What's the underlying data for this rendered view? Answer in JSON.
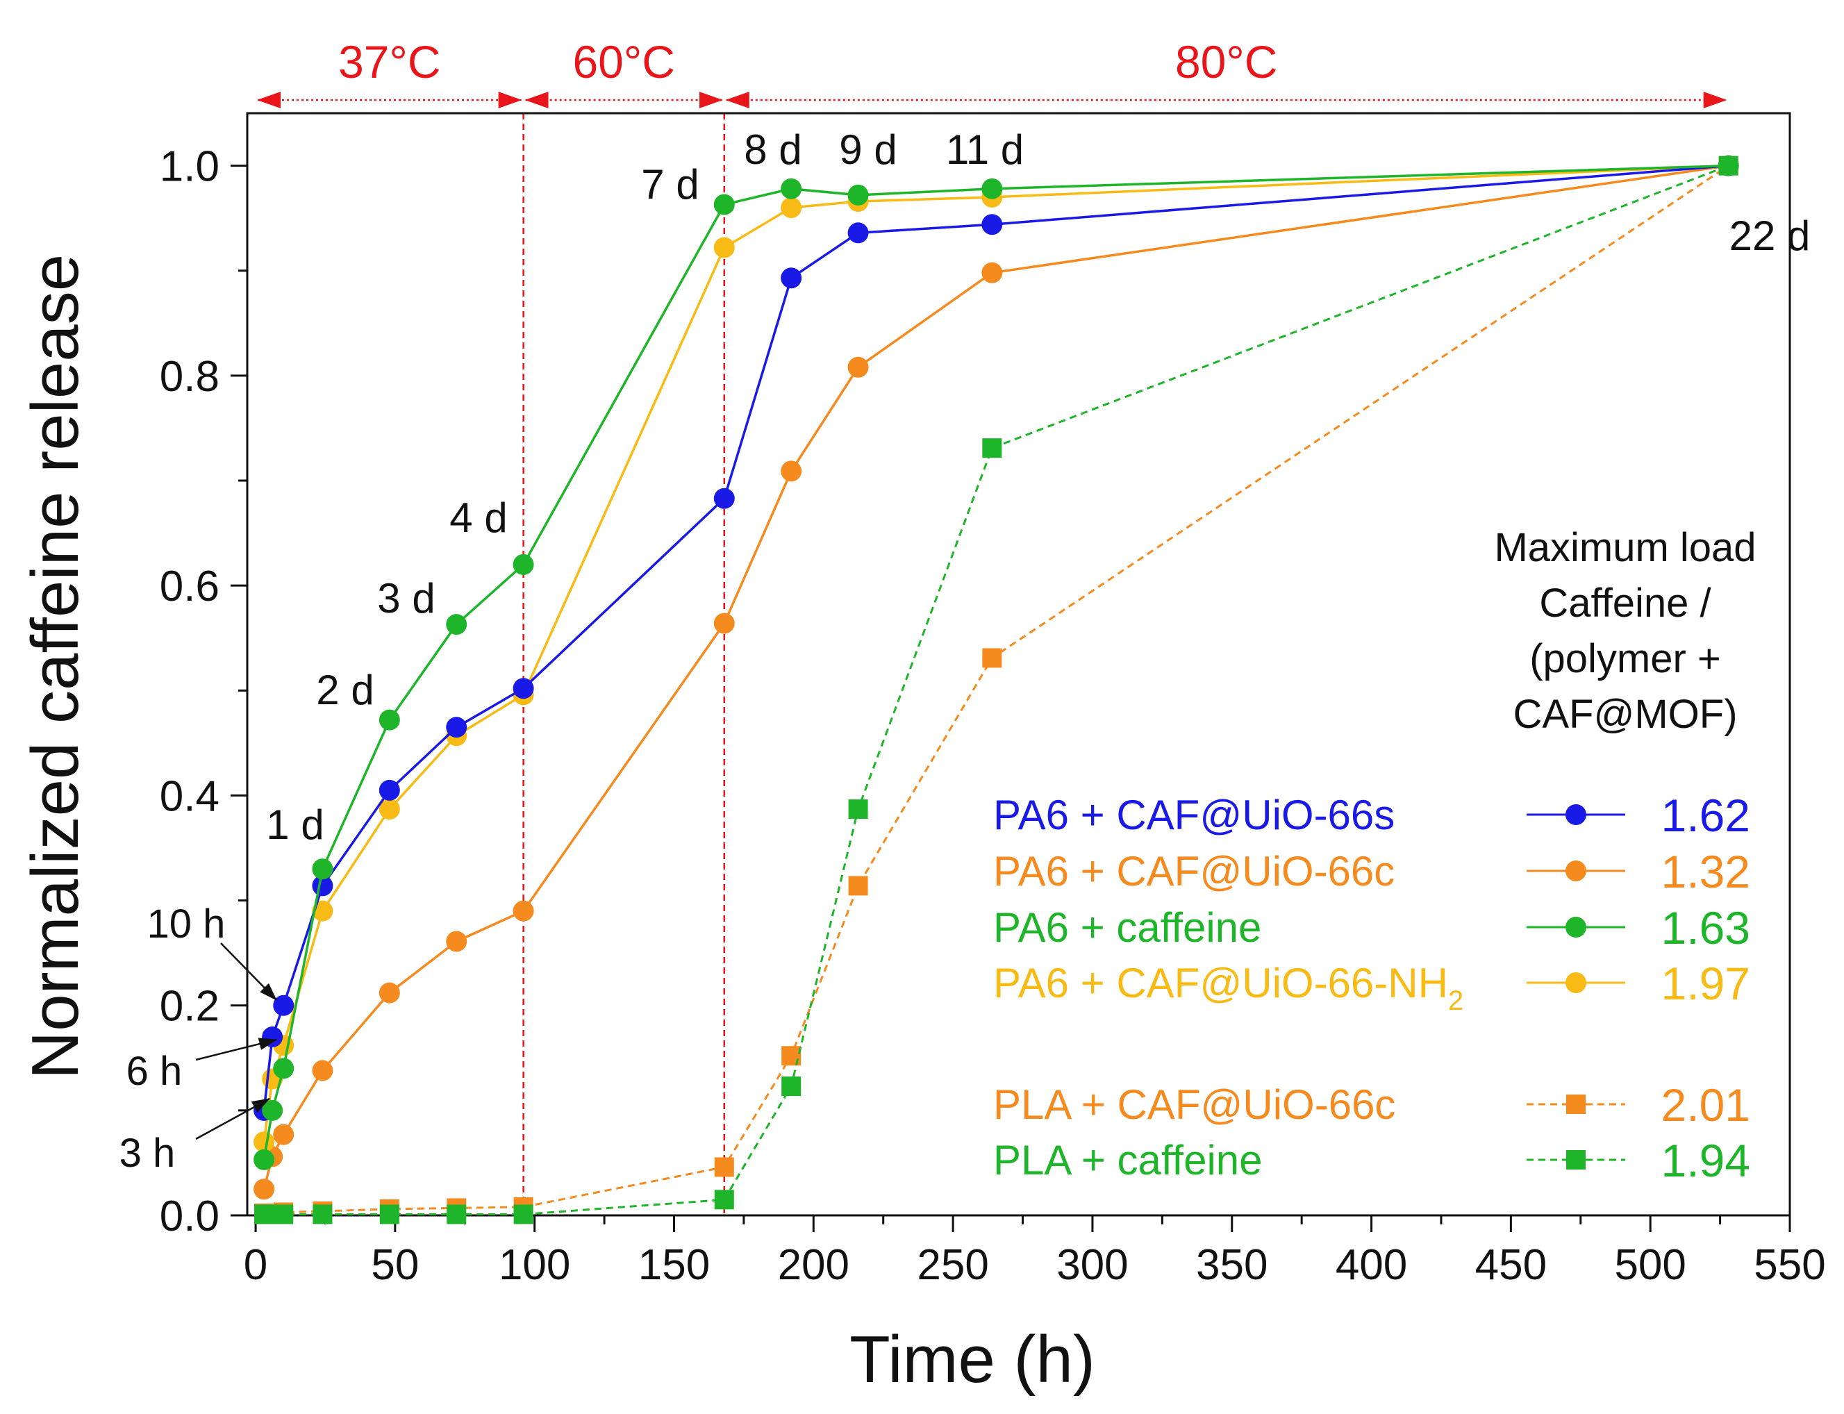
{
  "chart_data": {
    "type": "line",
    "title": "",
    "xlabel": "Time (h)",
    "ylabel": "Normalized caffeine release",
    "xlim": [
      -3,
      550
    ],
    "ylim": [
      0,
      1.05
    ],
    "xticks": [
      0,
      50,
      100,
      150,
      200,
      250,
      300,
      350,
      400,
      450,
      500,
      550
    ],
    "yticks": [
      0.0,
      0.2,
      0.4,
      0.6,
      0.8,
      1.0
    ],
    "ytick_labels": [
      "0.0",
      "0.2",
      "0.4",
      "0.6",
      "0.8",
      "1.0"
    ],
    "grid": false,
    "temperature_regions": [
      {
        "label": "37°C",
        "from": 0,
        "to": 96
      },
      {
        "label": "60°C",
        "from": 96,
        "to": 168
      },
      {
        "label": "80°C",
        "from": 168,
        "to": 528
      }
    ],
    "vlines": [
      96,
      168
    ],
    "time_annotations": [
      {
        "text": "1 d",
        "x": 24,
        "y": 0.33
      },
      {
        "text": "2 d",
        "x": 48,
        "y": 0.47
      },
      {
        "text": "3 d",
        "x": 72,
        "y": 0.56
      },
      {
        "text": "4 d",
        "x": 96,
        "y": 0.62
      },
      {
        "text": "7 d",
        "x": 168,
        "y": 0.96
      },
      {
        "text": "8 d",
        "x": 192,
        "y": 0.98
      },
      {
        "text": "9 d",
        "x": 216,
        "y": 0.98
      },
      {
        "text": "11 d",
        "x": 264,
        "y": 0.98
      },
      {
        "text": "22 d",
        "x": 528,
        "y": 0.93
      }
    ],
    "arrow_annotations": [
      {
        "text": "10 h",
        "x": 10,
        "y": 0.2
      },
      {
        "text": "6 h",
        "x": 6,
        "y": 0.17
      },
      {
        "text": "3 h",
        "x": 3,
        "y": 0.1
      }
    ],
    "legend_title": [
      "Maximum load",
      "Caffeine /",
      "(polymer +",
      "CAF@MOF)"
    ],
    "legend_position": "right",
    "series": [
      {
        "name": "PA6 + CAF@UiO-66s",
        "name_main": "PA6 + CAF@UiO-66s",
        "name_sub": "",
        "value": "1.62",
        "color": "#1a1ae6",
        "marker": "circle",
        "dashed": false,
        "x": [
          3,
          6,
          10,
          24,
          48,
          72,
          96,
          168,
          192,
          216,
          264,
          528
        ],
        "y": [
          0.1,
          0.17,
          0.2,
          0.314,
          0.405,
          0.465,
          0.502,
          0.683,
          0.893,
          0.936,
          0.944,
          1.0
        ]
      },
      {
        "name": "PA6 + CAF@UiO-66c",
        "name_main": "PA6 + CAF@UiO-66c",
        "name_sub": "",
        "value": "1.32",
        "color": "#f58a1f",
        "marker": "circle",
        "dashed": false,
        "x": [
          3,
          6,
          10,
          24,
          48,
          72,
          96,
          168,
          192,
          216,
          264,
          528
        ],
        "y": [
          0.025,
          0.056,
          0.077,
          0.138,
          0.212,
          0.261,
          0.29,
          0.564,
          0.709,
          0.808,
          0.898,
          1.0
        ]
      },
      {
        "name": "PA6 + caffeine",
        "name_main": "PA6 + caffeine",
        "name_sub": "",
        "value": "1.63",
        "color": "#1fb52a",
        "marker": "circle",
        "dashed": false,
        "x": [
          3,
          6,
          10,
          24,
          48,
          72,
          96,
          168,
          192,
          216,
          264,
          528
        ],
        "y": [
          0.053,
          0.1,
          0.14,
          0.33,
          0.472,
          0.563,
          0.62,
          0.963,
          0.978,
          0.972,
          0.978,
          1.0
        ]
      },
      {
        "name": "PA6 + CAF@UiO-66-NH2",
        "name_main": "PA6 + CAF@UiO-66-NH",
        "name_sub": "2",
        "value": "1.97",
        "color": "#f8bb15",
        "marker": "circle",
        "dashed": false,
        "x": [
          3,
          6,
          10,
          24,
          48,
          72,
          96,
          168,
          192,
          216,
          264,
          528
        ],
        "y": [
          0.07,
          0.13,
          0.162,
          0.29,
          0.387,
          0.457,
          0.496,
          0.922,
          0.96,
          0.966,
          0.97,
          1.0
        ]
      },
      {
        "name": "PLA + CAF@UiO-66c",
        "name_main": "PLA + CAF@UiO-66c",
        "name_sub": "",
        "value": "2.01",
        "color": "#f58a1f",
        "marker": "square",
        "dashed": true,
        "x": [
          3,
          6,
          10,
          24,
          48,
          72,
          96,
          168,
          192,
          216,
          264,
          528
        ],
        "y": [
          0.002,
          0.002,
          0.003,
          0.004,
          0.006,
          0.007,
          0.008,
          0.046,
          0.152,
          0.314,
          0.531,
          1.0
        ]
      },
      {
        "name": "PLA + caffeine",
        "name_main": "PLA + caffeine",
        "name_sub": "",
        "value": "1.94",
        "color": "#1fb52a",
        "marker": "square",
        "dashed": true,
        "x": [
          3,
          6,
          10,
          24,
          48,
          72,
          96,
          168,
          192,
          216,
          264,
          528
        ],
        "y": [
          0.001,
          0.001,
          0.001,
          0.001,
          0.001,
          0.001,
          0.001,
          0.015,
          0.123,
          0.387,
          0.731,
          1.0
        ]
      }
    ]
  }
}
